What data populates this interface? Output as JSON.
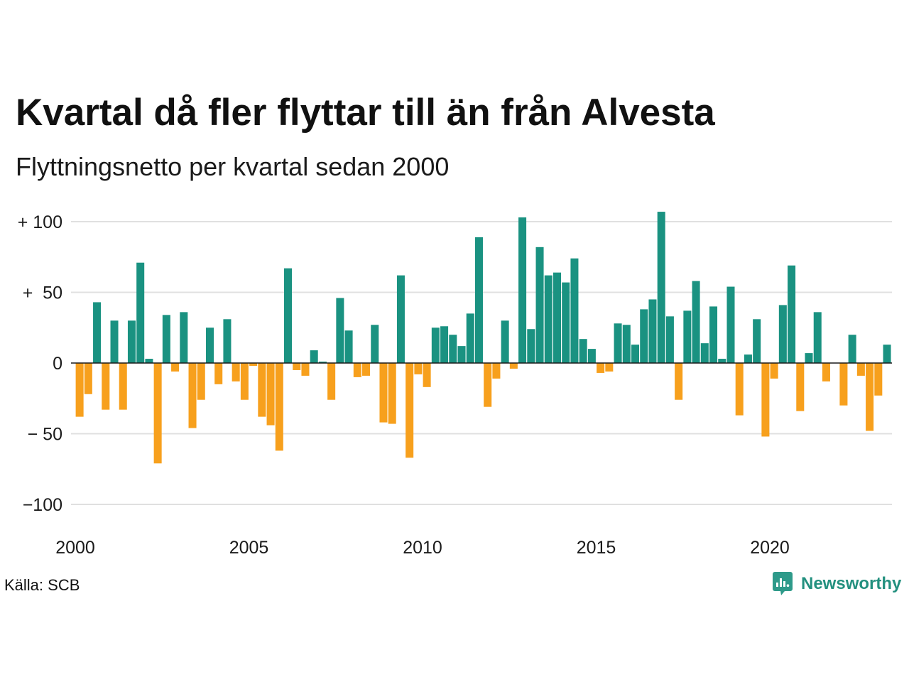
{
  "chart_data": {
    "type": "bar",
    "title": "Kvartal då fler flyttar till än från Alvesta",
    "subtitle": "Flyttningsnetto per kvartal sedan 2000",
    "x_ticks": [
      2000,
      2005,
      2010,
      2015,
      2020
    ],
    "y_ticks": [
      100,
      50,
      0,
      -50,
      -100
    ],
    "y_tick_labels": [
      "+ 100",
      "+  50",
      "0",
      "− 50",
      "−100"
    ],
    "xlim": [
      2000,
      2023.5
    ],
    "ylim": [
      -100,
      100
    ],
    "grid": true,
    "colors": {
      "positive": "#1a9281",
      "negative": "#f7a01d"
    },
    "x": [
      2000,
      2000.25,
      2000.5,
      2000.75,
      2001,
      2001.25,
      2001.5,
      2001.75,
      2002,
      2002.25,
      2002.5,
      2002.75,
      2003,
      2003.25,
      2003.5,
      2003.75,
      2004,
      2004.25,
      2004.5,
      2004.75,
      2005,
      2005.25,
      2005.5,
      2005.75,
      2006,
      2006.25,
      2006.5,
      2006.75,
      2007,
      2007.25,
      2007.5,
      2007.75,
      2008,
      2008.25,
      2008.5,
      2008.75,
      2009,
      2009.25,
      2009.5,
      2009.75,
      2010,
      2010.25,
      2010.5,
      2010.75,
      2011,
      2011.25,
      2011.5,
      2011.75,
      2012,
      2012.25,
      2012.5,
      2012.75,
      2013,
      2013.25,
      2013.5,
      2013.75,
      2014,
      2014.25,
      2014.5,
      2014.75,
      2015,
      2015.25,
      2015.5,
      2015.75,
      2016,
      2016.25,
      2016.5,
      2016.75,
      2017,
      2017.25,
      2017.5,
      2017.75,
      2018,
      2018.25,
      2018.5,
      2018.75,
      2019,
      2019.25,
      2019.5,
      2019.75,
      2020,
      2020.25,
      2020.5,
      2020.75,
      2021,
      2021.25,
      2021.5,
      2021.75,
      2022,
      2022.25,
      2022.5,
      2022.75,
      2023,
      2023.25
    ],
    "values": [
      -38,
      -22,
      43,
      -33,
      30,
      -33,
      30,
      71,
      3,
      -71,
      34,
      -6,
      36,
      -46,
      -26,
      25,
      -15,
      31,
      -13,
      -26,
      -2,
      -38,
      -44,
      -62,
      67,
      -5,
      -9,
      9,
      1,
      -26,
      46,
      23,
      -10,
      -9,
      27,
      -42,
      -43,
      62,
      -67,
      -8,
      -17,
      25,
      26,
      20,
      12,
      35,
      89,
      -31,
      -11,
      30,
      -4,
      103,
      24,
      82,
      62,
      64,
      57,
      74,
      17,
      10,
      -7,
      -6,
      28,
      27,
      13,
      38,
      45,
      107,
      33,
      -26,
      37,
      58,
      14,
      40,
      3,
      54,
      -37,
      6,
      31,
      -52,
      -11,
      41,
      69,
      -34,
      7,
      36,
      -13,
      0,
      -30,
      20,
      -9,
      -48,
      -23,
      13
    ]
  },
  "source": "Källa: SCB",
  "logo": {
    "text": "Newsworthy",
    "icon": "newsworthy-chart-bubble-icon",
    "color": "#23907f"
  }
}
